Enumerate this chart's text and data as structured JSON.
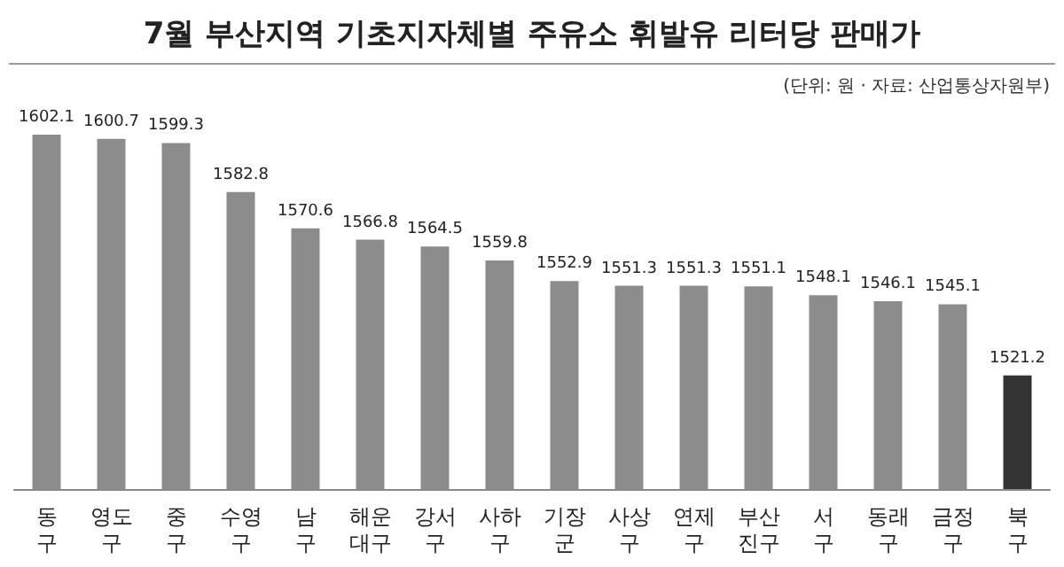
{
  "chart_data": {
    "type": "bar",
    "title": "7월 부산지역 기초지자체별 주유소 휘발유 리터당 판매가",
    "annotations": [
      "(단위: 원 · 자료: 산업통상자원부)"
    ],
    "categories": [
      "동구",
      "영도구",
      "중구",
      "수영구",
      "남구",
      "해운대구",
      "강서구",
      "사하구",
      "기장군",
      "사상구",
      "연제구",
      "부산진구",
      "서구",
      "동래구",
      "금정구",
      "북구"
    ],
    "values": [
      1602.1,
      1600.7,
      1599.3,
      1582.8,
      1570.6,
      1566.8,
      1564.5,
      1559.8,
      1552.9,
      1551.3,
      1551.3,
      1551.1,
      1548.1,
      1546.1,
      1545.1,
      1521.2
    ],
    "colors": [
      "#8c8c8c",
      "#8c8c8c",
      "#8c8c8c",
      "#8c8c8c",
      "#8c8c8c",
      "#8c8c8c",
      "#8c8c8c",
      "#8c8c8c",
      "#8c8c8c",
      "#8c8c8c",
      "#8c8c8c",
      "#8c8c8c",
      "#8c8c8c",
      "#8c8c8c",
      "#8c8c8c",
      "#333333"
    ],
    "ylim": [
      1483,
      1602.1
    ],
    "data_labels": true
  }
}
